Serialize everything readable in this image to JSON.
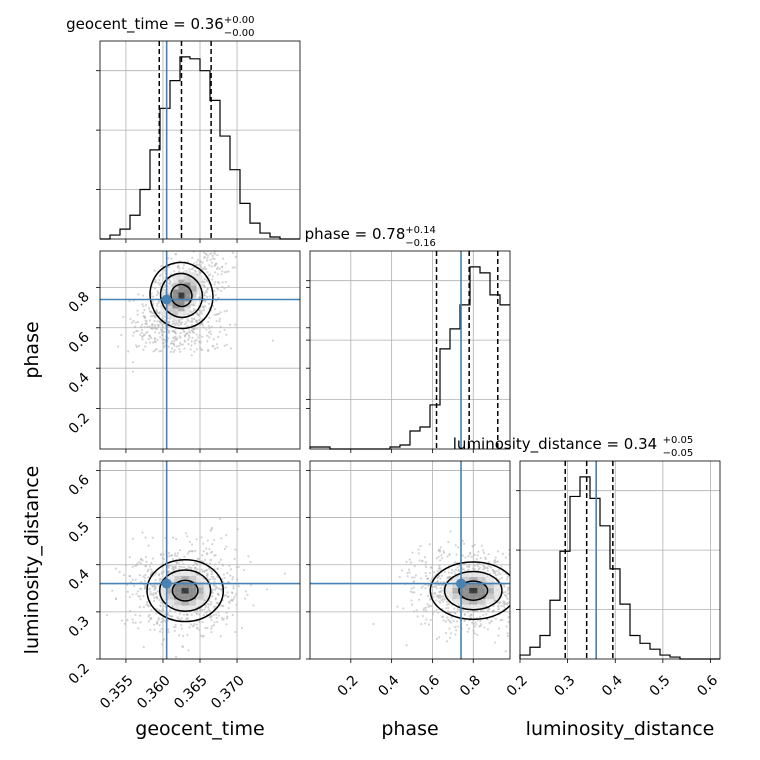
{
  "chart_data": {
    "type": "corner",
    "truth_color": "#4682b4",
    "hist_color": "#000000",
    "params": [
      {
        "name": "geocent_time",
        "xlabel": "geocent_time",
        "range": [
          0.3515,
          0.3785
        ],
        "ticks": [
          0.355,
          0.36,
          0.365,
          0.37
        ],
        "tick_labels": [
          "0.355",
          "0.360",
          "0.365",
          "0.370"
        ],
        "truth": 0.3605,
        "median": 0.3625,
        "q_low": 0.3595,
        "q_high": 0.3665,
        "title": {
          "main": "geocent_time = 0.36",
          "plus": "+0.00",
          "minus": "−0.00"
        },
        "hist": {
          "edges_start": 0.3515,
          "bin_width": 0.00135,
          "counts": [
            0,
            2,
            5,
            12,
            25,
            45,
            66,
            80,
            92,
            91,
            85,
            70,
            52,
            35,
            18,
            8,
            3,
            1,
            0,
            0
          ]
        }
      },
      {
        "name": "phase",
        "xlabel": "phase",
        "ylabel": "phase",
        "range": [
          0.0,
          0.98
        ],
        "ticks": [
          0.2,
          0.4,
          0.6,
          0.8
        ],
        "tick_labels": [
          "0.2",
          "0.4",
          "0.6",
          "0.8"
        ],
        "truth": 0.74,
        "median": 0.78,
        "q_low": 0.62,
        "q_high": 0.92,
        "title": {
          "main": "phase = 0.78",
          "plus": "+0.14",
          "minus": "−0.16"
        },
        "hist": {
          "edges_start": 0.0,
          "bin_width": 0.049,
          "counts": [
            1,
            1,
            0,
            0,
            0,
            0,
            0,
            0,
            1,
            2,
            9,
            11,
            22,
            50,
            60,
            72,
            91,
            88,
            77,
            72
          ]
        }
      },
      {
        "name": "luminosity_distance",
        "xlabel": "luminosity_distance",
        "ylabel": "luminosity_distance",
        "range": [
          0.2,
          0.62
        ],
        "ticks": [
          0.2,
          0.3,
          0.4,
          0.5,
          0.6
        ],
        "tick_labels": [
          "0.2",
          "0.3",
          "0.4",
          "0.5",
          "0.6"
        ],
        "truth": 0.36,
        "median": 0.34,
        "q_low": 0.295,
        "q_high": 0.395,
        "title": {
          "main": "luminosity_distance = 0.34",
          "plus": "+0.05",
          "minus": "−0.05"
        },
        "hist": {
          "edges_start": 0.2,
          "bin_width": 0.021,
          "counts": [
            2,
            6,
            12,
            30,
            55,
            83,
            93,
            82,
            68,
            46,
            28,
            12,
            8,
            5,
            2,
            1,
            0,
            0,
            0,
            0
          ]
        }
      }
    ],
    "grid": true
  }
}
